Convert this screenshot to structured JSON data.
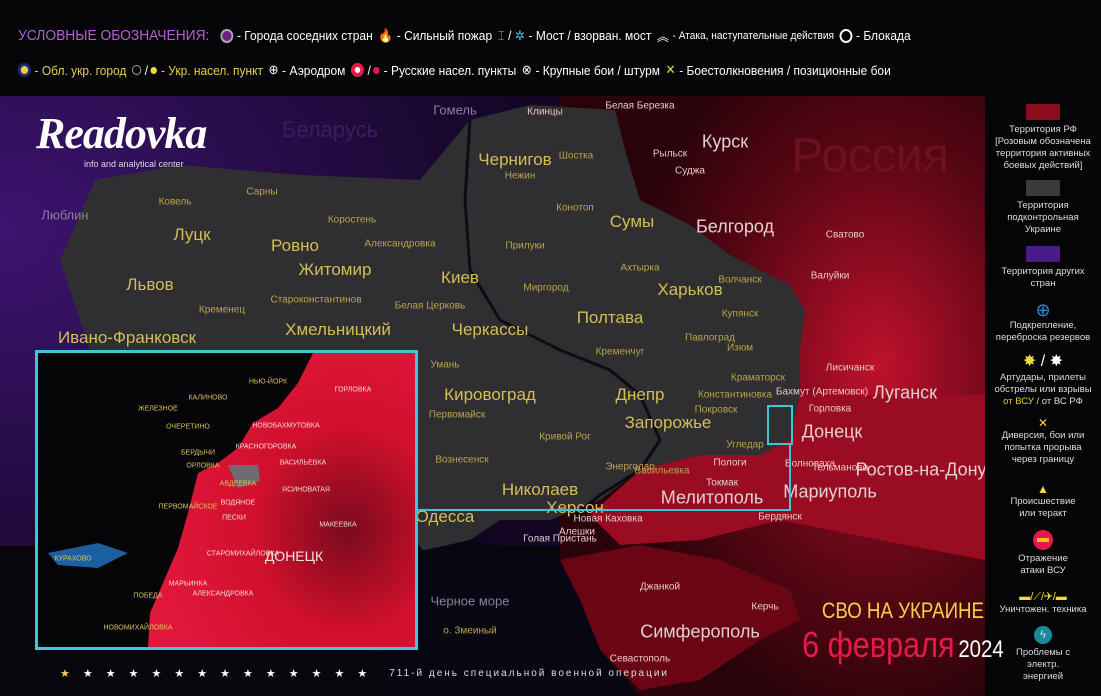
{
  "header": {
    "title": "УСЛОВНЫЕ ОБОЗНАЧЕНИЯ:",
    "row1": [
      "- Города соседних стран",
      "- Сильный пожар",
      "/",
      "- Мост / взорван. мост",
      "- Атака, наступательные действия",
      "- Блокада"
    ],
    "row2": [
      "- Обл. укр. город",
      "/",
      "- Укр. насел. пункт",
      "- Аэродром",
      "/",
      "- Русские  насел. пункты",
      "- Крупные бои / штурм",
      "- Боестолкновения / позиционные бои"
    ]
  },
  "logo": {
    "name": "Readovka",
    "tagline": "info and analytical center"
  },
  "legend": {
    "rf": "Территория РФ [Розовым обозначена территория активных боевых действий]",
    "ua": "Территория подконтрольная Украине",
    "other": "Территория других стран",
    "reinforce": "Подкрепление, переброска резервов",
    "artillery": "Артудары, прилеты обстрелы или взрывы",
    "art_from_ua": "от ВСУ",
    "art_sep": "/",
    "art_from_ru": "от ВС РФ",
    "diversion": "Диверсия, бои или попытка прорыва через границу",
    "incident": "Происшествие или теракт",
    "repel": "Отражение атаки ВСУ",
    "vehicles": "Уничтожен. техника",
    "power": "Проблемы с электр. энергией",
    "colors": {
      "rf": "#8a0d1e",
      "ua": "#3a3a38",
      "other": "#4a1a8a"
    }
  },
  "map": {
    "countries": [
      "Беларусь",
      "Россия"
    ],
    "cities": [
      "Гомель",
      "Люблин",
      "Луцк",
      "Ровно",
      "Житомир",
      "Киев",
      "Чернигов",
      "Сумы",
      "Харьков",
      "Полтава",
      "Черкассы",
      "Хмельницкий",
      "Ивано-Франковск",
      "Львов",
      "Кировоград",
      "Днепр",
      "Запорожье",
      "Николаев",
      "Одесса",
      "Херсон",
      "Мелитополь",
      "Мариуполь",
      "Донецк",
      "Луганск",
      "Ростов-на-Дону",
      "Симферополь",
      "Курск",
      "Белгород",
      "Кременчуг",
      "Кривой Рог",
      "Умань",
      "Первомайск",
      "Вознесенск",
      "Бердянск",
      "Изюм",
      "Краматорск",
      "Лисичанск",
      "Бахмут (Артемовск)",
      "Горловка",
      "Шостка",
      "Конотоп",
      "Нежин",
      "Прилуки",
      "Миргород",
      "Ахтырка",
      "Коростень",
      "Кременец",
      "Староконстантинов",
      "Сарны",
      "Ковель",
      "Белая Церковь",
      "Александровка",
      "Суджа",
      "Рыльск",
      "Валуйки",
      "Волчанск",
      "Купянск",
      "Константиновка",
      "Покровск",
      "Угледар",
      "Волноваха",
      "Токмак",
      "Пологи",
      "Энергодар",
      "Васильевка",
      "Новая Каховка",
      "Голая Пристань",
      "Алешки",
      "Джанкой",
      "Керчь",
      "Севастополь",
      "о. Змеиный",
      "Черное море",
      "Павлоград",
      "Белая Березка",
      "Клинцы",
      "Тельманово",
      "Сватово"
    ],
    "inset": {
      "cities": [
        "ГОРЛОВКА",
        "НОВОБАХМУТОВКА",
        "КРАСНОГОРОВКА",
        "ВАСИЛЬЕВКА",
        "ЯСИНОВАТАЯ",
        "АВДЕЕВКА",
        "ВОДЯНОЕ",
        "ПЕСКИ",
        "ПЕРВОМАЙСКОЕ",
        "МАКЕЕВКА",
        "ДОНЕЦК",
        "СТАРОМИХАЙЛОВКА",
        "МАРЬИНКА",
        "АЛЕКСАНДРОВКА",
        "ПОБЕДА",
        "НОВОМИХАЙЛОВКА",
        "ОЧЕРЕТИНО",
        "БЕРДЫЧИ",
        "ОРЛОВКА",
        "НЬЮ-ЙОРК",
        "КАЛИНОВО",
        "КУРАХОВО",
        "ЖЕЛЕЗНОЕ"
      ]
    }
  },
  "title": {
    "line1": "СВО НА УКРАИНЕ",
    "date": "6 февраля",
    "year": "2024"
  },
  "footer": {
    "day_text": "711-й  день  специальной  военной  операции",
    "stars": 14
  }
}
